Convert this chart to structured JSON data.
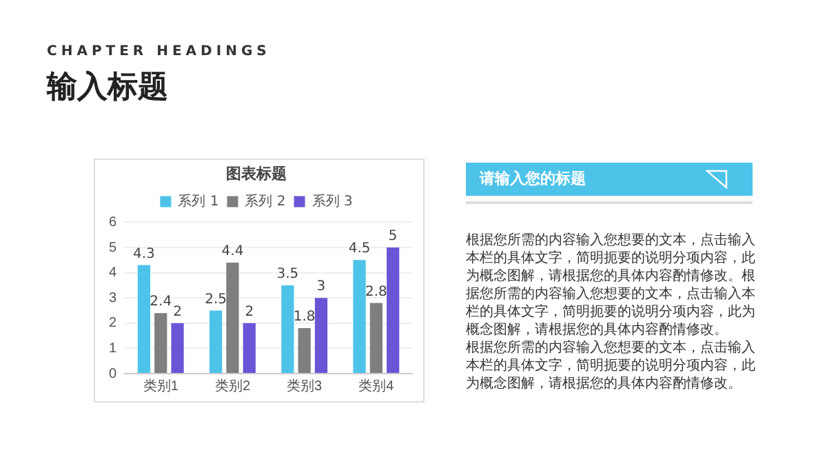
{
  "chart_data": {
    "type": "bar",
    "title": "图表标题",
    "categories": [
      "类别1",
      "类别2",
      "类别3",
      "类别4"
    ],
    "series": [
      {
        "name": "系列 1",
        "color": "#4dc3ea",
        "values": [
          4.3,
          2.5,
          3.5,
          4.5
        ]
      },
      {
        "name": "系列 2",
        "color": "#7f7f7f",
        "values": [
          2.4,
          4.4,
          1.8,
          2.8
        ]
      },
      {
        "name": "系列 3",
        "color": "#6a55d6",
        "values": [
          2,
          2,
          3,
          5
        ]
      }
    ],
    "ylim": [
      0,
      6
    ],
    "yticks": [
      0,
      1,
      2,
      3,
      4,
      5,
      6
    ],
    "grid": "y",
    "legend": "top",
    "data_labels": true,
    "annotations": [
      "CHAPTER HEADINGS",
      "输入标题",
      "请输入您的标题",
      "根据您所需的内容输入您想要的文本，点击输入本栏的具体文字，简明扼要的说明分项内容，此为概念图解，请根据您的具体内容酌情修改。根据您所需的内容输入您想要的文本，点击输入本栏的具体文字，简明扼要的说明分项内容，此为概念图解，请根据您的具体内容酌情修改。",
      "根据您所需的内容输入您想要的文本，点击输入本栏的具体文字，简明扼要的说明分项内容，此为概念图解，请根据您的具体内容酌情修改。"
    ]
  }
}
